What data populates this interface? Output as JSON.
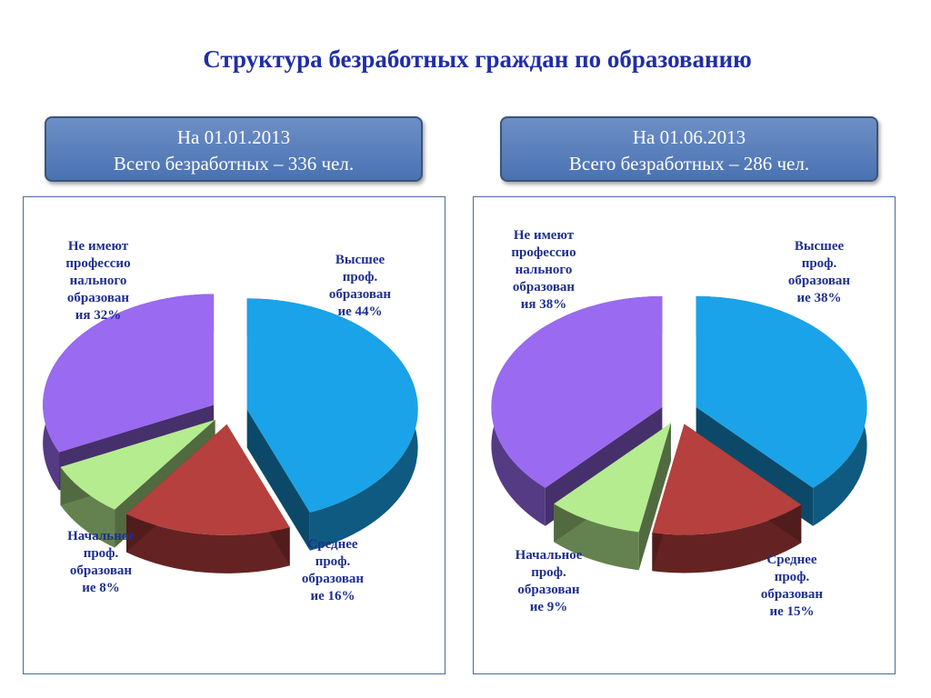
{
  "title": "Структура безработных граждан по образованию",
  "colors": {
    "higher": "#1aa3e8",
    "secondary": "#b5403e",
    "primary": "#b5ec8f",
    "none": "#9a6af0",
    "title": "#1f2ea6",
    "labels": "#1f2f8f"
  },
  "panels": [
    {
      "header": {
        "line1": "На 01.01.2013",
        "line2": "Всего безработных – 336 чел."
      },
      "labels": {
        "higher": [
          "Высшее",
          "проф.",
          "образован",
          "ие 44%"
        ],
        "secondary": [
          "Среднее",
          "проф.",
          "образован",
          "ие 16%"
        ],
        "primary": [
          "Начальное",
          "проф.",
          "образован",
          "ие 8%"
        ],
        "none": [
          "Не имеют",
          "профессио",
          "нального",
          "образован",
          "ия 32%"
        ]
      }
    },
    {
      "header": {
        "line1": "На 01.06.2013",
        "line2": "Всего безработных – 286 чел."
      },
      "labels": {
        "higher": [
          "Высшее",
          "проф.",
          "образован",
          "ие 38%"
        ],
        "secondary": [
          "Среднее",
          "проф.",
          "образован",
          "ие 15%"
        ],
        "primary": [
          "Начальное",
          "проф.",
          "образован",
          "ие 9%"
        ],
        "none": [
          "Не имеют",
          "профессио",
          "нального",
          "образован",
          "ия 38%"
        ]
      }
    }
  ],
  "chart_data": [
    {
      "type": "pie",
      "title": "На 01.01.2013",
      "categories": [
        "Высшее проф. образование",
        "Среднее проф. образование",
        "Начальное проф. образование",
        "Не имеют профессионального образования"
      ],
      "values": [
        44,
        16,
        8,
        32
      ],
      "unit": "%"
    },
    {
      "type": "pie",
      "title": "На 01.06.2013",
      "categories": [
        "Высшее проф. образование",
        "Среднее проф. образование",
        "Начальное проф. образование",
        "Не имеют профессионального образования"
      ],
      "values": [
        38,
        15,
        9,
        38
      ],
      "unit": "%"
    }
  ]
}
